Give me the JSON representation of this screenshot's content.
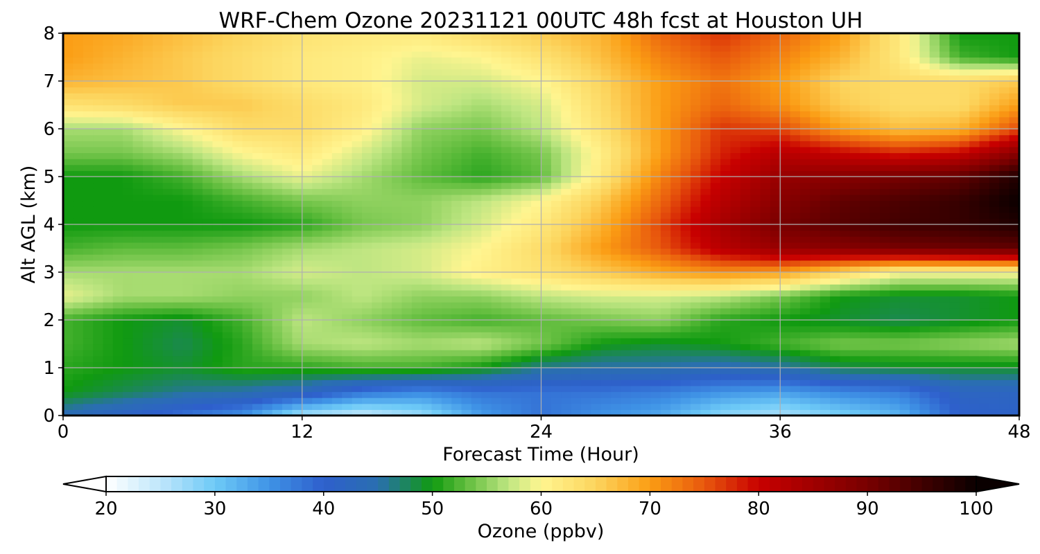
{
  "chart_data": {
    "type": "heatmap",
    "title": "WRF-Chem Ozone  20231121 00UTC 48h fcst at Houston UH",
    "xlabel": "Forecast Time (Hour)",
    "ylabel": "Alt AGL (km)",
    "xlim": [
      0,
      48
    ],
    "ylim": [
      0,
      8
    ],
    "x_ticks": [
      0,
      12,
      24,
      36,
      48
    ],
    "y_ticks": [
      0,
      1,
      2,
      3,
      4,
      5,
      6,
      7,
      8
    ],
    "grid": true,
    "x": [
      0,
      3,
      6,
      9,
      12,
      15,
      18,
      21,
      24,
      27,
      30,
      33,
      36,
      39,
      42,
      45,
      48
    ],
    "y": [
      0,
      0.5,
      1,
      1.5,
      2,
      2.5,
      3,
      3.5,
      4,
      4.5,
      5,
      5.5,
      6,
      6.5,
      7,
      7.5,
      8
    ],
    "z": [
      [
        44,
        41,
        38,
        35,
        26,
        24,
        27,
        34,
        38,
        35,
        33,
        28,
        26,
        29,
        32,
        40,
        41
      ],
      [
        50,
        48,
        46,
        45,
        43,
        38,
        36,
        38,
        38,
        38,
        37,
        35,
        34,
        36,
        37,
        42,
        42
      ],
      [
        51,
        50,
        49,
        51,
        51,
        52,
        52,
        50,
        46,
        45,
        45,
        44,
        45,
        48,
        49,
        49,
        49
      ],
      [
        52,
        50,
        48,
        51,
        56,
        57,
        56,
        57,
        54,
        50,
        49,
        50,
        52,
        54,
        54,
        55,
        56
      ],
      [
        52,
        50,
        49,
        52,
        57,
        55,
        53,
        52,
        53,
        54,
        55,
        51,
        50,
        49,
        48,
        49,
        50
      ],
      [
        59,
        56,
        56,
        55,
        55,
        57,
        55,
        55,
        57,
        58,
        58,
        57,
        54,
        50,
        49,
        49,
        50
      ],
      [
        56,
        56,
        56,
        56,
        58,
        57,
        58,
        61,
        63,
        66,
        69,
        71,
        70,
        65,
        60,
        60,
        60
      ],
      [
        52,
        53,
        53,
        54,
        56,
        57,
        58,
        60,
        64,
        70,
        75,
        82,
        86,
        88,
        90,
        91,
        92
      ],
      [
        50,
        50,
        50,
        50,
        51,
        54,
        55,
        58,
        62,
        68,
        76,
        84,
        90,
        93,
        95,
        96,
        98
      ],
      [
        50,
        50,
        50,
        52,
        54,
        55,
        55,
        57,
        60,
        66,
        74,
        82,
        88,
        92,
        94,
        96,
        100
      ],
      [
        50,
        50,
        52,
        56,
        59,
        56,
        53,
        51,
        53,
        62,
        72,
        80,
        86,
        88,
        90,
        92,
        98
      ],
      [
        54,
        54,
        56,
        60,
        62,
        58,
        54,
        52,
        54,
        61,
        70,
        78,
        82,
        80,
        78,
        80,
        88
      ],
      [
        56,
        56,
        60,
        64,
        64,
        61,
        55,
        54,
        57,
        63,
        70,
        77,
        76,
        70,
        67,
        68,
        76
      ],
      [
        63,
        64,
        66,
        66,
        64,
        62,
        58,
        56,
        58,
        64,
        70,
        74,
        71,
        66,
        64,
        64,
        70
      ],
      [
        68,
        67,
        66,
        64,
        62,
        61,
        58,
        58,
        60,
        65,
        70,
        73,
        70,
        65,
        64,
        64,
        66
      ],
      [
        70,
        68,
        66,
        64,
        62,
        61,
        59,
        60,
        63,
        67,
        72,
        75,
        72,
        68,
        62,
        52,
        50
      ],
      [
        70,
        69,
        67,
        65,
        63,
        62,
        62,
        64,
        66,
        68,
        74,
        77,
        74,
        70,
        62,
        50,
        50
      ]
    ],
    "colorbar": {
      "label": "Ozone  (ppbv)",
      "min": 20,
      "max": 100,
      "ticks": [
        20,
        30,
        40,
        50,
        60,
        70,
        80,
        90,
        100
      ],
      "extend": "both",
      "color_stops": [
        [
          20,
          "#ffffff"
        ],
        [
          25,
          "#bfe6fb"
        ],
        [
          30,
          "#6ecaf7"
        ],
        [
          35,
          "#3f93e6"
        ],
        [
          40,
          "#2e5fcc"
        ],
        [
          45,
          "#2a6fb0"
        ],
        [
          50,
          "#109a10"
        ],
        [
          53,
          "#5fbc3c"
        ],
        [
          57,
          "#bfe682"
        ],
        [
          60,
          "#fff590"
        ],
        [
          65,
          "#fcd55e"
        ],
        [
          70,
          "#fb9d14"
        ],
        [
          75,
          "#e8580d"
        ],
        [
          80,
          "#c80000"
        ],
        [
          90,
          "#780000"
        ],
        [
          100,
          "#0a0000"
        ]
      ]
    }
  }
}
